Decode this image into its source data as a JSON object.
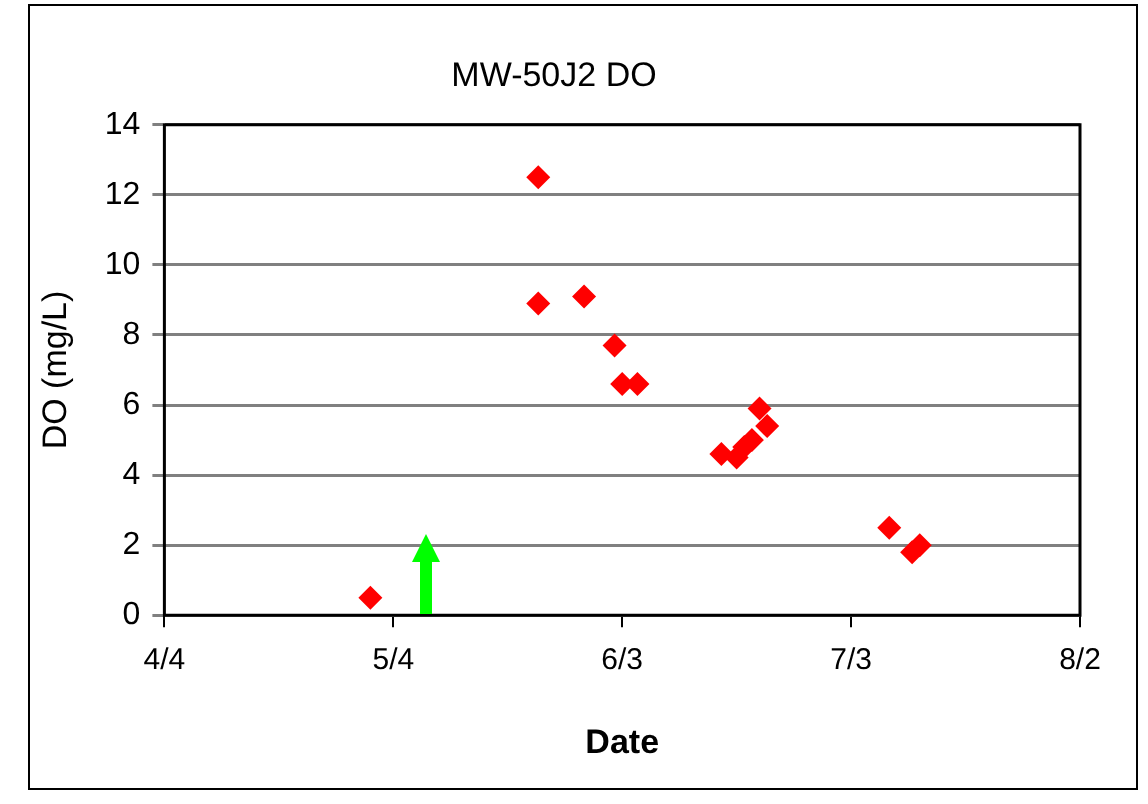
{
  "chart_data": {
    "type": "scatter",
    "title": "MW-50J2 DO",
    "xlabel": "Date",
    "ylabel": "DO (mg/L)",
    "x": [
      "--05-01",
      "--05-23",
      "--05-23",
      "--05-29",
      "--06-02",
      "--06-03",
      "--06-05",
      "--06-16",
      "--06-18",
      "--06-19",
      "--06-20",
      "--06-21",
      "--06-22",
      "--07-08",
      "--07-11",
      "--07-12"
    ],
    "series": [
      {
        "color": "#ff0000",
        "values": [
          0.5,
          12.5,
          8.9,
          9.1,
          7.7,
          6.6,
          6.6,
          4.6,
          4.5,
          4.8,
          5.0,
          5.9,
          5.4,
          2.5,
          1.8,
          2.0
        ]
      }
    ],
    "xlim": [
      "--04-04",
      "--08-02"
    ],
    "xticks": [
      {
        "value": "--04-04",
        "label": "4/4"
      },
      {
        "value": "--05-04",
        "label": "5/4"
      },
      {
        "value": "--06-03",
        "label": "6/3"
      },
      {
        "value": "--07-03",
        "label": "7/3"
      },
      {
        "value": "--08-02",
        "label": "8/2"
      }
    ],
    "ylim": [
      0,
      14
    ],
    "yticks": [
      0,
      2,
      4,
      6,
      8,
      10,
      12,
      14
    ],
    "grid": "y",
    "marker": "diamond"
  }
}
